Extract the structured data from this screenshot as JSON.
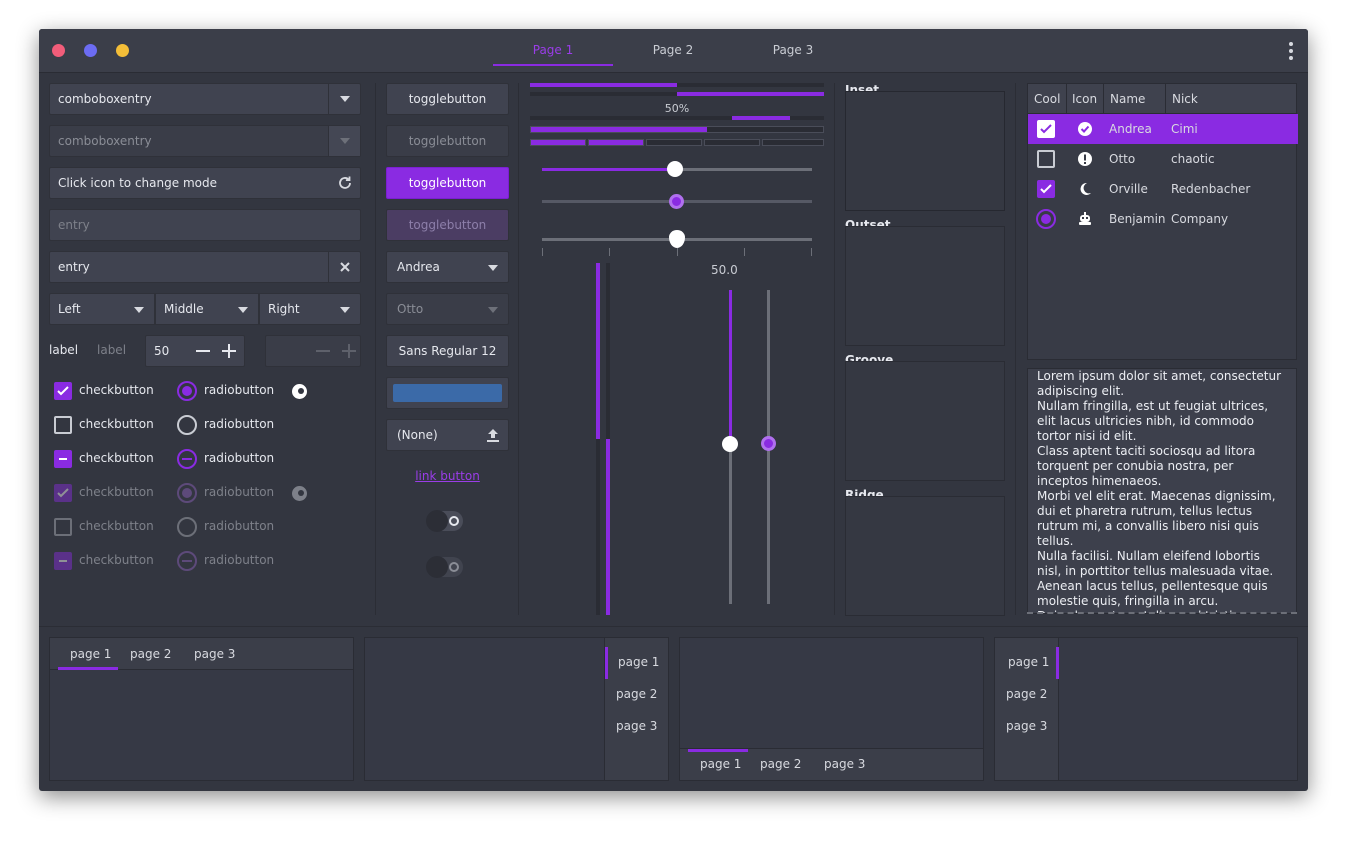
{
  "titlebar": {
    "tabs": [
      "Page 1",
      "Page 2",
      "Page 3"
    ],
    "dot_colors": [
      "#f25d7a",
      "#6c6cf3",
      "#f4be38"
    ]
  },
  "col1": {
    "combo1": "comboboxentry",
    "combo2": "comboboxentry",
    "mode_entry": "Click icon to change mode",
    "entry_placeholder": "entry",
    "entry_value": "entry",
    "seg": [
      "Left",
      "Middle",
      "Right"
    ],
    "label1": "label",
    "label2": "label",
    "spin_value": "50",
    "check": [
      "checkbutton",
      "checkbutton",
      "checkbutton",
      "checkbutton",
      "checkbutton",
      "checkbutton"
    ],
    "radio": [
      "radiobutton",
      "radiobutton",
      "radiobutton",
      "radiobutton",
      "radiobutton",
      "radiobutton"
    ]
  },
  "col2": {
    "toggles": [
      "togglebutton",
      "togglebutton",
      "togglebutton",
      "togglebutton"
    ],
    "combo_andrea": "Andrea",
    "combo_otto": "Otto",
    "font": "Sans Regular  12",
    "file": "(None)",
    "link": "link button",
    "color_swatch": "#3b6aa8"
  },
  "col3": {
    "progress_text": "50%",
    "scale_value": "50.0",
    "progress": 0.5,
    "accent": "#8a2be2"
  },
  "frames": [
    "Inset",
    "Outset",
    "Groove",
    "Ridge"
  ],
  "tree": {
    "headers": [
      "Cool",
      "Icon",
      "Name",
      "Nick"
    ],
    "rows": [
      {
        "cool": "checked",
        "icon": "check-circle-icon",
        "name": "Andrea",
        "nick": "Cimi",
        "selected": true
      },
      {
        "cool": "unchecked",
        "icon": "alert-circle-icon",
        "name": "Otto",
        "nick": "chaotic",
        "selected": false
      },
      {
        "cool": "checked",
        "icon": "moon-icon",
        "name": "Orville",
        "nick": "Redenbacher",
        "selected": false
      },
      {
        "cool": "radio",
        "icon": "robot-icon",
        "name": "Benjamin",
        "nick": "Company",
        "selected": false
      }
    ]
  },
  "textview": {
    "text": "Lorem ipsum dolor sit amet, consectetur adipiscing elit.\nNullam fringilla, est ut feugiat ultrices, elit lacus ultricies nibh, id commodo tortor nisi id elit.\nClass aptent taciti sociosqu ad litora torquent per conubia nostra, per inceptos himenaeos.\nMorbi vel elit erat. Maecenas dignissim, dui et pharetra rutrum, tellus lectus rutrum mi, a convallis libero nisi quis tellus.\nNulla facilisi. Nullam eleifend lobortis nisl, in porttitor tellus malesuada vitae.\nAenean lacus tellus, pellentesque quis molestie quis, fringilla in arcu.\nDuis elementum, tellus sed tristique"
  },
  "notebooks": [
    {
      "tabs": [
        "page 1",
        "page 2",
        "page 3"
      ]
    },
    {
      "tabs": [
        "page 1",
        "page 2",
        "page 3"
      ]
    },
    {
      "tabs": [
        "page 1",
        "page 2",
        "page 3"
      ]
    },
    {
      "tabs": [
        "page 1",
        "page 2",
        "page 3"
      ]
    }
  ]
}
